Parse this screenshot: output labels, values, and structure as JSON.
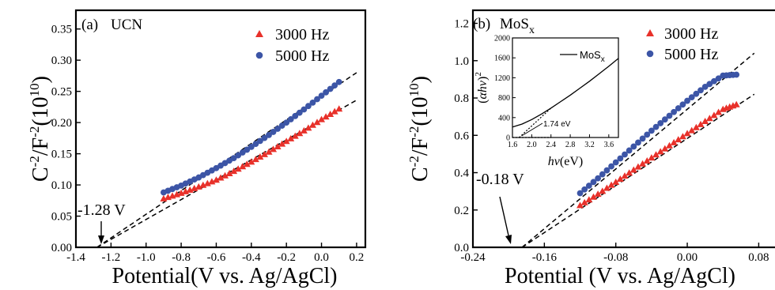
{
  "chart_data": [
    {
      "type": "scatter",
      "panel_label": "(a)",
      "material": "UCN",
      "xlabel": "Potential(V vs. Ag/AgCl)",
      "ylabel": {
        "base": "C",
        "exp1": "-2",
        "mid": "/F",
        "exp2": "-2",
        "paren": "(10",
        "exp3": "10",
        "close": ")"
      },
      "xlim": [
        -1.4,
        0.25
      ],
      "ylim": [
        0.0,
        0.38
      ],
      "xticks": [
        -1.4,
        -1.2,
        -1.0,
        -0.8,
        -0.6,
        -0.4,
        -0.2,
        0.0,
        0.2
      ],
      "xtick_labels": [
        "-1.4",
        "-1.2",
        "-1.0",
        "-0.8",
        "-0.6",
        "-0.4",
        "-0.2",
        "0.0",
        "0.2"
      ],
      "yticks": [
        0.0,
        0.05,
        0.1,
        0.15,
        0.2,
        0.25,
        0.3,
        0.35
      ],
      "ytick_labels": [
        "0.00",
        "0.05",
        "0.10",
        "0.15",
        "0.20",
        "0.25",
        "0.30",
        "0.35"
      ],
      "legend_position": "top-right",
      "series": [
        {
          "name": "3000 Hz",
          "marker": "triangle",
          "color": "#e8312a",
          "x": [
            -0.9,
            -0.8,
            -0.7,
            -0.6,
            -0.5,
            -0.4,
            -0.3,
            -0.2,
            -0.1,
            0.0,
            0.1
          ],
          "y": [
            0.078,
            0.087,
            0.097,
            0.108,
            0.122,
            0.137,
            0.153,
            0.17,
            0.187,
            0.205,
            0.222
          ]
        },
        {
          "name": "5000 Hz",
          "marker": "circle",
          "color": "#3c55a6",
          "x": [
            -0.9,
            -0.8,
            -0.7,
            -0.6,
            -0.5,
            -0.4,
            -0.3,
            -0.2,
            -0.1,
            0.0,
            0.1
          ],
          "y": [
            0.088,
            0.099,
            0.112,
            0.127,
            0.143,
            0.161,
            0.18,
            0.2,
            0.221,
            0.243,
            0.265
          ]
        }
      ],
      "fit_lines": [
        {
          "x": [
            -1.28,
            0.2
          ],
          "y": [
            0.0,
            0.236
          ]
        },
        {
          "x": [
            -1.28,
            0.2
          ],
          "y": [
            0.0,
            0.28
          ]
        }
      ],
      "annotation": {
        "text": "-1.28 V",
        "x": -1.28
      }
    },
    {
      "type": "scatter",
      "panel_label": "(b)",
      "material": {
        "base": "MoS",
        "sub": "x"
      },
      "xlabel": "Potential (V vs. Ag/AgCl)",
      "ylabel": {
        "base": "C",
        "exp1": "-2",
        "mid": "/F",
        "exp2": "-2",
        "paren": "(10",
        "exp3": "10",
        "close": ")"
      },
      "xlim": [
        -0.24,
        0.1
      ],
      "ylim": [
        0.0,
        1.27
      ],
      "xticks": [
        -0.24,
        -0.16,
        -0.08,
        0.0,
        0.08
      ],
      "xtick_labels": [
        "-0.24",
        "-0.16",
        "-0.08",
        "0.00",
        "0.08"
      ],
      "yticks": [
        0.0,
        0.2,
        0.4,
        0.6,
        0.8,
        1.0,
        1.2
      ],
      "ytick_labels": [
        "0.0",
        "0.2",
        "0.4",
        "0.6",
        "0.8",
        "1.0",
        "1.2"
      ],
      "legend_position": "top-right",
      "series": [
        {
          "name": "3000 Hz",
          "marker": "triangle",
          "color": "#e8312a",
          "x": [
            -0.12,
            -0.1,
            -0.08,
            -0.06,
            -0.04,
            -0.02,
            0.0,
            0.02,
            0.04,
            0.055
          ],
          "y": [
            0.225,
            0.285,
            0.35,
            0.415,
            0.48,
            0.545,
            0.61,
            0.675,
            0.74,
            0.765
          ]
        },
        {
          "name": "5000 Hz",
          "marker": "circle",
          "color": "#3c55a6",
          "x": [
            -0.12,
            -0.1,
            -0.08,
            -0.06,
            -0.04,
            -0.02,
            0.0,
            0.02,
            0.04,
            0.055
          ],
          "y": [
            0.29,
            0.37,
            0.455,
            0.54,
            0.625,
            0.705,
            0.785,
            0.86,
            0.92,
            0.925
          ]
        }
      ],
      "fit_lines": [
        {
          "x": [
            -0.185,
            0.075
          ],
          "y": [
            0.0,
            0.82
          ]
        },
        {
          "x": [
            -0.185,
            0.075
          ],
          "y": [
            0.0,
            1.04
          ]
        }
      ],
      "annotation": {
        "text": "-0.18 V",
        "x": -0.18
      },
      "inset": {
        "type": "line",
        "xlabel": {
          "base": "hv",
          "unit": "(eV)"
        },
        "ylabel": {
          "open": "(",
          "base": "αhv",
          "close": ")",
          "exp": "2"
        },
        "legend": {
          "base": "MoS",
          "sub": "x"
        },
        "xlim": [
          1.6,
          3.8
        ],
        "ylim": [
          0,
          2000
        ],
        "xticks": [
          1.6,
          2.0,
          2.4,
          2.8,
          3.2,
          3.6
        ],
        "xtick_labels": [
          "1.6",
          "2.0",
          "2.4",
          "2.8",
          "3.2",
          "3.6"
        ],
        "yticks": [
          0,
          400,
          800,
          1200,
          1600,
          2000
        ],
        "ytick_labels": [
          "0",
          "400",
          "800",
          "1200",
          "1600",
          "2000"
        ],
        "curve": {
          "x": [
            1.6,
            1.8,
            2.0,
            2.2,
            2.4,
            2.6,
            2.8,
            3.0,
            3.2,
            3.4,
            3.6,
            3.8
          ],
          "y": [
            210,
            270,
            360,
            470,
            590,
            720,
            850,
            990,
            1130,
            1280,
            1430,
            1590
          ]
        },
        "tangent": {
          "x": [
            1.74,
            2.4
          ],
          "y": [
            0,
            590
          ]
        },
        "baseline": {
          "x": [
            1.6,
            2.4
          ],
          "y": [
            0,
            0
          ]
        },
        "annotation": {
          "text": "1.74 eV",
          "x": 1.74
        }
      }
    }
  ]
}
